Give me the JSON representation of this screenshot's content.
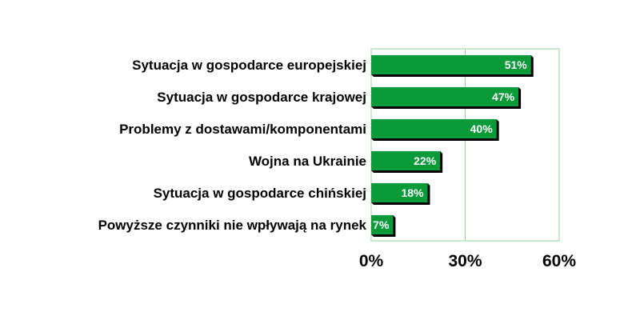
{
  "chart_data": {
    "type": "bar",
    "orientation": "horizontal",
    "categories": [
      "Sytuacja w gospodarce europejskiej",
      "Sytuacja w gospodarce krajowej",
      "Problemy z dostawami/komponentami",
      "Wojna na Ukrainie",
      "Sytuacja w gospodarce chińskiej",
      "Powyższe czynniki nie wpływają na rynek"
    ],
    "values": [
      51,
      47,
      40,
      22,
      18,
      7
    ],
    "data_labels": [
      "51%",
      "47%",
      "40%",
      "22%",
      "18%",
      "7%"
    ],
    "xlim": [
      0,
      60
    ],
    "xticks": [
      0,
      30,
      60
    ],
    "xtick_labels": [
      "0%",
      "30%",
      "60%"
    ],
    "bar_color": "#0a9a3a",
    "bar_shadow_color": "#000000",
    "grid_color": "#9ad59a",
    "grid": true,
    "legend": "none"
  }
}
